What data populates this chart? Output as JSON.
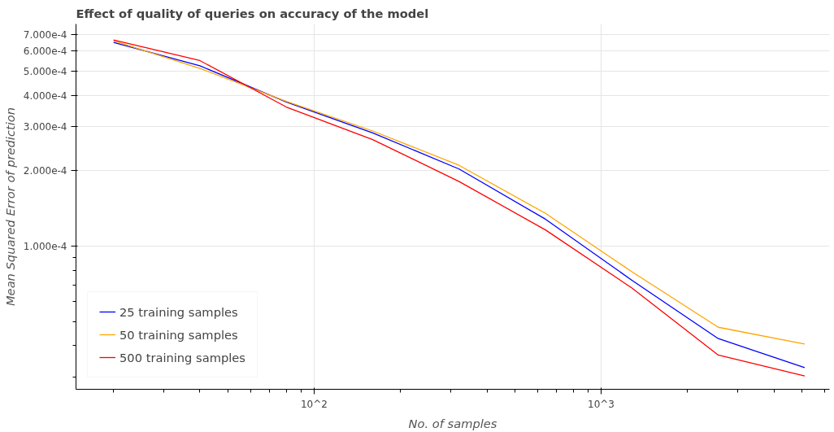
{
  "chart_data": {
    "type": "line",
    "title": "Effect of quality of queries on accuracy of the model",
    "xlabel": "No. of samples",
    "ylabel": "Mean Squared Error of prediction",
    "x": [
      20,
      40,
      80,
      160,
      320,
      640,
      1280,
      2560,
      5120
    ],
    "series": [
      {
        "name": "25 training samples",
        "color": "#0000ff",
        "values": [
          0.00065,
          0.000524,
          0.000376,
          0.000283,
          0.000203,
          0.000128,
          7.3e-05,
          4.27e-05,
          3.27e-05
        ]
      },
      {
        "name": "50 training samples",
        "color": "#ffa500",
        "values": [
          0.00066,
          0.000512,
          0.000378,
          0.000288,
          0.00021,
          0.000135,
          7.9e-05,
          4.74e-05,
          4.06e-05
        ]
      },
      {
        "name": "500 training samples",
        "color": "#ff0000",
        "values": [
          0.000665,
          0.00055,
          0.000359,
          0.000266,
          0.000181,
          0.000116,
          6.8e-05,
          3.67e-05,
          3.03e-05
        ]
      }
    ],
    "log": "xy",
    "xlim": [
      14.8,
      6250
    ],
    "ylim": [
      2.68e-05,
      0.00077
    ],
    "xticks": [
      {
        "value": 100,
        "label": "10^2"
      },
      {
        "value": 1000,
        "label": "10^3"
      }
    ],
    "yticks": [
      {
        "value": 0.0001,
        "label": "1.000e-4"
      },
      {
        "value": 0.0002,
        "label": "2.000e-4"
      },
      {
        "value": 0.0003,
        "label": "3.000e-4"
      },
      {
        "value": 0.0004,
        "label": "4.000e-4"
      },
      {
        "value": 0.0005,
        "label": "5.000e-4"
      },
      {
        "value": 0.0006,
        "label": "6.000e-4"
      },
      {
        "value": 0.0007,
        "label": "7.000e-4"
      }
    ],
    "grid": true,
    "legend": "bottom left",
    "line_style": "solid",
    "marker": "none"
  }
}
